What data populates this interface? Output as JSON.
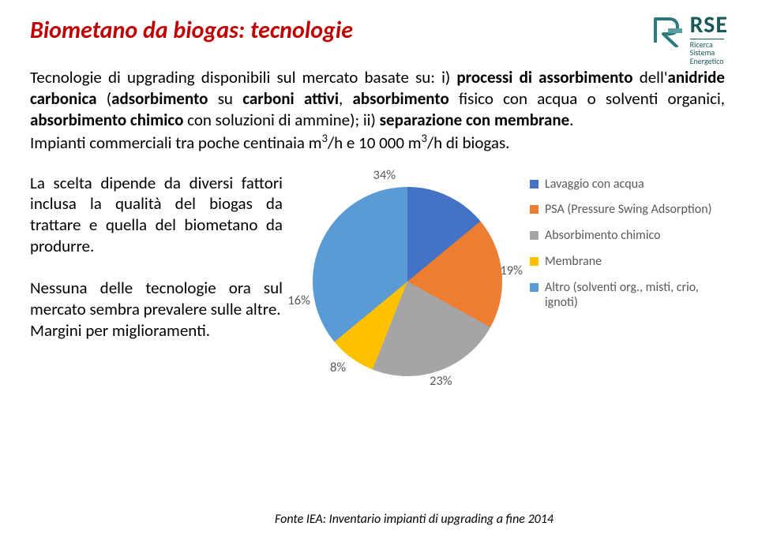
{
  "title": "Biometano da biogas: tecnologie",
  "logo": {
    "main": "RSE",
    "sub1": "Ricerca",
    "sub2": "Sistema",
    "sub3": "Energetico",
    "icon_primary": "#2e7a7a",
    "icon_accent": "#5aa0a0"
  },
  "intro_html": "Tecnologie di upgrading disponibili sul mercato basate su: i) <b>processi di assorbimento</b> dell'<b>anidride carbonica</b> (<b>adsorbimento</b> su <b>carboni attivi</b>, <b>absorbimento</b> fisico con acqua o solventi organici, <b>absorbimento chimico</b> con soluzioni di ammine); ii) <b>separazione con membrane</b>.<br>Impianti commerciali tra poche centinaia m<sup>3</sup>/h e 10 000 m<sup>3</sup>/h di biogas.",
  "para1": "La scelta dipende da diversi fattori inclusa la qualità del biogas da trattare e quella del biometano da produrre.",
  "para2": "Nessuna delle tecnologie ora sul mercato sembra prevalere sulle altre.\nMargini per miglioramenti.",
  "chart": {
    "type": "pie",
    "background_color": "#ffffff",
    "label_color": "#595959",
    "label_fontsize": 16.5,
    "legend_fontsize": 16,
    "slices": [
      {
        "label": "Lavaggio con acqua",
        "value": 34,
        "color": "#4473c5"
      },
      {
        "label": "PSA (Pressure Swing Adsorption)",
        "value": 19,
        "color": "#ed7d31"
      },
      {
        "label": "Absorbimento chimico",
        "value": 23,
        "color": "#a5a5a5"
      },
      {
        "label": "Membrane",
        "value": 8,
        "color": "#ffc000"
      },
      {
        "label": "Altro (solventi org., misti, crio, ignoti)",
        "value": 16,
        "color": "#5b9bd5"
      }
    ],
    "datalabels": {
      "s0": "34%",
      "s1": "19%",
      "s2": "23%",
      "s3": "8%",
      "s4": "16%"
    },
    "start_angle_deg": -72
  },
  "source": "Fonte IEA: Inventario impianti di upgrading a fine 2014"
}
